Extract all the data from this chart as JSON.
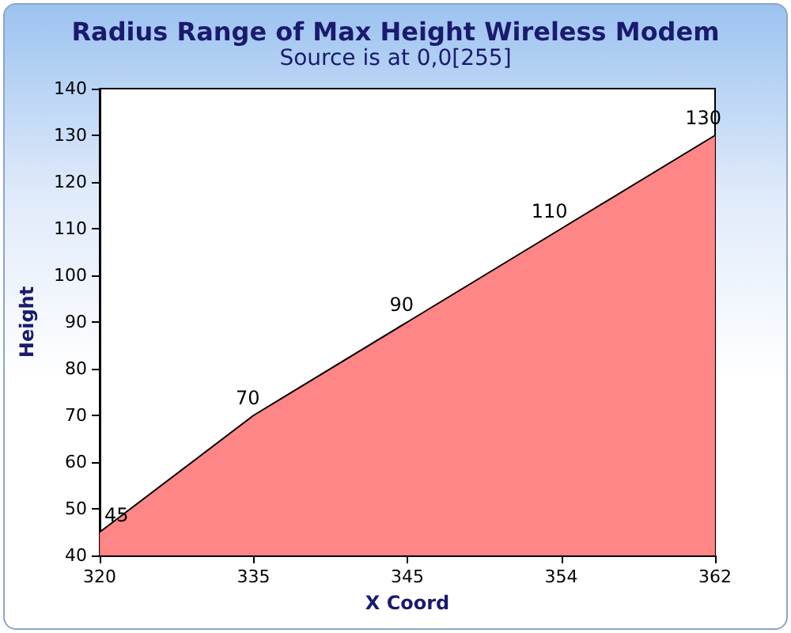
{
  "chart_data": {
    "type": "area",
    "title": "Radius Range of Max Height Wireless Modem",
    "subtitle": "Source is at 0,0[255]",
    "xlabel": "X Coord",
    "ylabel": "Height",
    "categories": [
      "320",
      "335",
      "345",
      "354",
      "362"
    ],
    "series": [
      {
        "color": "#ff7f7f",
        "values": [
          45,
          70,
          90,
          110,
          130
        ]
      }
    ],
    "ylim": [
      40,
      140
    ],
    "yticks": [
      40,
      50,
      60,
      70,
      80,
      90,
      100,
      110,
      120,
      130,
      140
    ],
    "grid": false,
    "marker": "none",
    "line_style": "solid",
    "data_labels": true
  }
}
